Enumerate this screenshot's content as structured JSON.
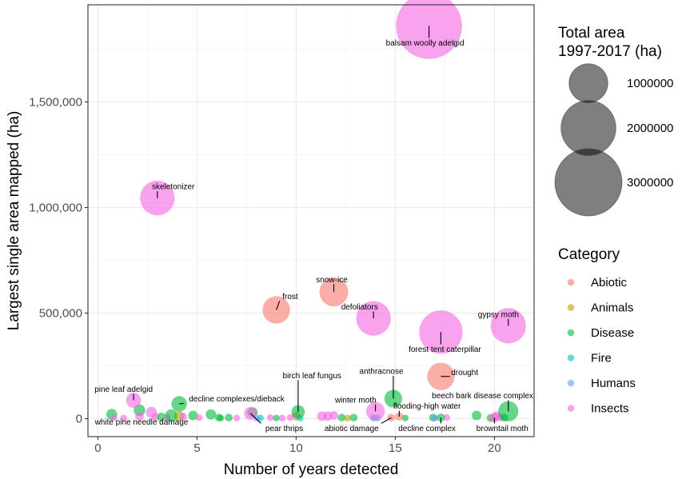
{
  "chart_data": {
    "type": "scatter",
    "xlabel": "Number of years detected",
    "ylabel": "Largest single area mapped (ha)",
    "xlim": [
      -0.5,
      22
    ],
    "ylim": [
      -85000,
      1960000
    ],
    "x_ticks": [
      0,
      5,
      10,
      15,
      20
    ],
    "x_tick_labels": [
      "0",
      "5",
      "10",
      "15",
      "20"
    ],
    "y_ticks": [
      0,
      500000,
      1000000,
      1500000
    ],
    "y_tick_labels": [
      "0",
      "500,000",
      "1,000,000",
      "1,500,000"
    ],
    "grid": true,
    "size_legend": {
      "title": "Total area\n1997-2017 (ha)",
      "entries": [
        {
          "label": "1000000",
          "value": 1000000
        },
        {
          "label": "2000000",
          "value": 2000000
        },
        {
          "label": "3000000",
          "value": 3000000
        }
      ]
    },
    "color_legend": {
      "title": "Category",
      "entries": [
        {
          "label": "Abiotic",
          "color": "#F8766D"
        },
        {
          "label": "Animals",
          "color": "#B79F00"
        },
        {
          "label": "Disease",
          "color": "#00BA38"
        },
        {
          "label": "Fire",
          "color": "#00BFC4"
        },
        {
          "label": "Humans",
          "color": "#619CFF"
        },
        {
          "label": "Insects",
          "color": "#F564E3"
        }
      ]
    },
    "points": [
      {
        "label": "balsam woolly adelgid",
        "cat": "Insects",
        "x": 16.7,
        "y": 1860000,
        "total": 2900000
      },
      {
        "label": "skeletonizer",
        "cat": "Insects",
        "x": 3.0,
        "y": 1045000,
        "total": 800000
      },
      {
        "label": "frost",
        "cat": "Abiotic",
        "x": 9.0,
        "y": 515000,
        "total": 500000
      },
      {
        "label": "snow-ice",
        "cat": "Abiotic",
        "x": 11.9,
        "y": 600000,
        "total": 550000
      },
      {
        "label": "defoliators",
        "cat": "Insects",
        "x": 13.9,
        "y": 475000,
        "total": 800000
      },
      {
        "label": "forest tent caterpillar",
        "cat": "Insects",
        "x": 17.3,
        "y": 410000,
        "total": 1250000
      },
      {
        "label": "gypsy moth",
        "cat": "Insects",
        "x": 20.7,
        "y": 440000,
        "total": 830000
      },
      {
        "label": "drought",
        "cat": "Abiotic",
        "x": 17.3,
        "y": 200000,
        "total": 500000
      },
      {
        "label": "anthracnose",
        "cat": "Disease",
        "x": 14.9,
        "y": 95000,
        "total": 210000
      },
      {
        "label": "pine leaf adelgid",
        "cat": "Insects",
        "x": 1.8,
        "y": 87000,
        "total": 150000
      },
      {
        "label": "decline complexes/dieback",
        "cat": "Disease",
        "x": 4.1,
        "y": 70000,
        "total": 160000
      },
      {
        "label": "birch leaf fungus",
        "cat": "Disease",
        "x": 10.1,
        "y": 32000,
        "total": 120000
      },
      {
        "label": "winter moth",
        "cat": "Insects",
        "x": 14.0,
        "y": 35000,
        "total": 230000
      },
      {
        "label": "beech bark disease complex",
        "cat": "Disease",
        "x": 20.7,
        "y": 35000,
        "total": 270000
      },
      {
        "label": "white pine needle damage",
        "cat": "Disease",
        "x": 3.7,
        "y": 15000,
        "total": 100000
      },
      {
        "label": "pear thrips",
        "cat": "Insects",
        "x": 7.7,
        "y": 25000,
        "total": 110000
      },
      {
        "label": "abiotic damage",
        "cat": "Abiotic",
        "x": 14.8,
        "y": 5000,
        "total": 40000
      },
      {
        "label": "flooding-high water",
        "cat": "Abiotic",
        "x": 15.2,
        "y": 10000,
        "total": 45000
      },
      {
        "label": "decline complex",
        "cat": "Disease",
        "x": 17.3,
        "y": 5000,
        "total": 45000
      },
      {
        "label": "browntail moth",
        "cat": "Insects",
        "x": 20.0,
        "y": 5000,
        "total": 60000
      }
    ],
    "annotations": [
      {
        "text": "balsam woolly adelgid",
        "for": "balsam woolly adelgid",
        "lx": 16.5,
        "ly": 1780000
      },
      {
        "text": "skeletonizer",
        "for": "skeletonizer",
        "lx": 3.8,
        "ly": 1100000
      },
      {
        "text": "frost",
        "for": "frost",
        "lx": 9.7,
        "ly": 580000
      },
      {
        "text": "snow-ice",
        "for": "snow-ice",
        "lx": 11.8,
        "ly": 660000
      },
      {
        "text": "defoliators",
        "for": "defoliators",
        "lx": 13.2,
        "ly": 530000
      },
      {
        "text": "forest tent caterpillar",
        "for": "forest tent caterpillar",
        "lx": 17.5,
        "ly": 330000
      },
      {
        "text": "gypsy moth",
        "for": "gypsy moth",
        "lx": 20.2,
        "ly": 495000
      },
      {
        "text": "drought",
        "for": "drought",
        "lx": 18.5,
        "ly": 220000
      },
      {
        "text": "anthracnose",
        "for": "anthracnose",
        "lx": 14.3,
        "ly": 225000
      },
      {
        "text": "pine leaf adelgid",
        "for": "pine leaf adelgid",
        "lx": 1.3,
        "ly": 140000
      },
      {
        "text": "decline complexes/dieback",
        "for": "decline complexes/dieback",
        "lx": 7.0,
        "ly": 95000
      },
      {
        "text": "birch leaf fungus",
        "for": "birch leaf fungus",
        "lx": 10.8,
        "ly": 205000
      },
      {
        "text": "winter moth",
        "for": "winter moth",
        "lx": 13.0,
        "ly": 90000
      },
      {
        "text": "beech bark disease complex",
        "for": "beech bark disease complex",
        "lx": 19.4,
        "ly": 110000
      },
      {
        "text": "flooding-high water",
        "for": "flooding-high water",
        "lx": 16.6,
        "ly": 60000
      },
      {
        "text": "white pine needle damage",
        "for": "white pine needle damage",
        "lx": 2.2,
        "ly": -15000
      },
      {
        "text": "pear thrips",
        "for": "pear thrips",
        "lx": 9.4,
        "ly": -45000
      },
      {
        "text": "abiotic damage",
        "for": "abiotic damage",
        "lx": 12.8,
        "ly": -45000
      },
      {
        "text": "decline complex",
        "for": "decline complex",
        "lx": 16.6,
        "ly": -45000
      },
      {
        "text": "browntail moth",
        "for": "browntail moth",
        "lx": 20.4,
        "ly": -45000
      }
    ],
    "background_points": [
      {
        "cat": "Disease",
        "x": 0.7,
        "y": 20000,
        "total": 80000
      },
      {
        "cat": "Insects",
        "x": 0.8,
        "y": 5000,
        "total": 30000
      },
      {
        "cat": "Insects",
        "x": 1.3,
        "y": 3000,
        "total": 30000
      },
      {
        "cat": "Disease",
        "x": 2.1,
        "y": 40000,
        "total": 90000
      },
      {
        "cat": "Insects",
        "x": 2.1,
        "y": 12000,
        "total": 50000
      },
      {
        "cat": "Insects",
        "x": 2.7,
        "y": 30000,
        "total": 80000
      },
      {
        "cat": "Insects",
        "x": 2.9,
        "y": 8000,
        "total": 40000
      },
      {
        "cat": "Disease",
        "x": 3.2,
        "y": 8000,
        "total": 50000
      },
      {
        "cat": "Insects",
        "x": 3.5,
        "y": 5000,
        "total": 30000
      },
      {
        "cat": "Animals",
        "x": 4.1,
        "y": 12000,
        "total": 70000
      },
      {
        "cat": "Insects",
        "x": 4.3,
        "y": 10000,
        "total": 40000
      },
      {
        "cat": "Disease",
        "x": 4.8,
        "y": 15000,
        "total": 60000
      },
      {
        "cat": "Insects",
        "x": 5.1,
        "y": 5000,
        "total": 30000
      },
      {
        "cat": "Disease",
        "x": 5.7,
        "y": 20000,
        "total": 70000
      },
      {
        "cat": "Disease",
        "x": 6.1,
        "y": 5000,
        "total": 40000
      },
      {
        "cat": "Disease",
        "x": 6.2,
        "y": 3000,
        "total": 30000
      },
      {
        "cat": "Disease",
        "x": 6.6,
        "y": 5000,
        "total": 40000
      },
      {
        "cat": "Insects",
        "x": 7.0,
        "y": 3000,
        "total": 30000
      },
      {
        "cat": "Disease",
        "x": 7.8,
        "y": 30000,
        "total": 70000
      },
      {
        "cat": "Humans",
        "x": 8.0,
        "y": 3000,
        "total": 30000
      },
      {
        "cat": "Fire",
        "x": 8.2,
        "y": 3000,
        "total": 25000
      },
      {
        "cat": "Insects",
        "x": 8.7,
        "y": 5000,
        "total": 30000
      },
      {
        "cat": "Disease",
        "x": 9.0,
        "y": 3000,
        "total": 25000
      },
      {
        "cat": "Insects",
        "x": 9.3,
        "y": 3000,
        "total": 25000
      },
      {
        "cat": "Insects",
        "x": 9.7,
        "y": 5000,
        "total": 30000
      },
      {
        "cat": "Abiotic",
        "x": 10.0,
        "y": 12000,
        "total": 50000
      },
      {
        "cat": "Fire",
        "x": 10.2,
        "y": 3000,
        "total": 25000
      },
      {
        "cat": "Insects",
        "x": 11.3,
        "y": 12000,
        "total": 60000
      },
      {
        "cat": "Insects",
        "x": 11.6,
        "y": 12000,
        "total": 60000
      },
      {
        "cat": "Insects",
        "x": 11.9,
        "y": 15000,
        "total": 50000
      },
      {
        "cat": "Disease",
        "x": 12.3,
        "y": 5000,
        "total": 40000
      },
      {
        "cat": "Animals",
        "x": 12.6,
        "y": 3000,
        "total": 30000
      },
      {
        "cat": "Disease",
        "x": 12.9,
        "y": 5000,
        "total": 40000
      },
      {
        "cat": "Fire",
        "x": 13.9,
        "y": 3000,
        "total": 25000
      },
      {
        "cat": "Humans",
        "x": 14.1,
        "y": 3000,
        "total": 25000
      },
      {
        "cat": "Disease",
        "x": 15.5,
        "y": 3000,
        "total": 30000
      },
      {
        "cat": "Disease",
        "x": 16.9,
        "y": 5000,
        "total": 40000
      },
      {
        "cat": "Humans",
        "x": 17.0,
        "y": 3000,
        "total": 25000
      },
      {
        "cat": "Insects",
        "x": 17.6,
        "y": 5000,
        "total": 30000
      },
      {
        "cat": "Disease",
        "x": 19.1,
        "y": 15000,
        "total": 60000
      },
      {
        "cat": "Disease",
        "x": 19.8,
        "y": 3000,
        "total": 40000
      },
      {
        "cat": "Insects",
        "x": 20.1,
        "y": 12000,
        "total": 60000
      },
      {
        "cat": "Insects",
        "x": 20.3,
        "y": 5000,
        "total": 40000
      },
      {
        "cat": "Disease",
        "x": 20.5,
        "y": 5000,
        "total": 40000
      }
    ]
  }
}
